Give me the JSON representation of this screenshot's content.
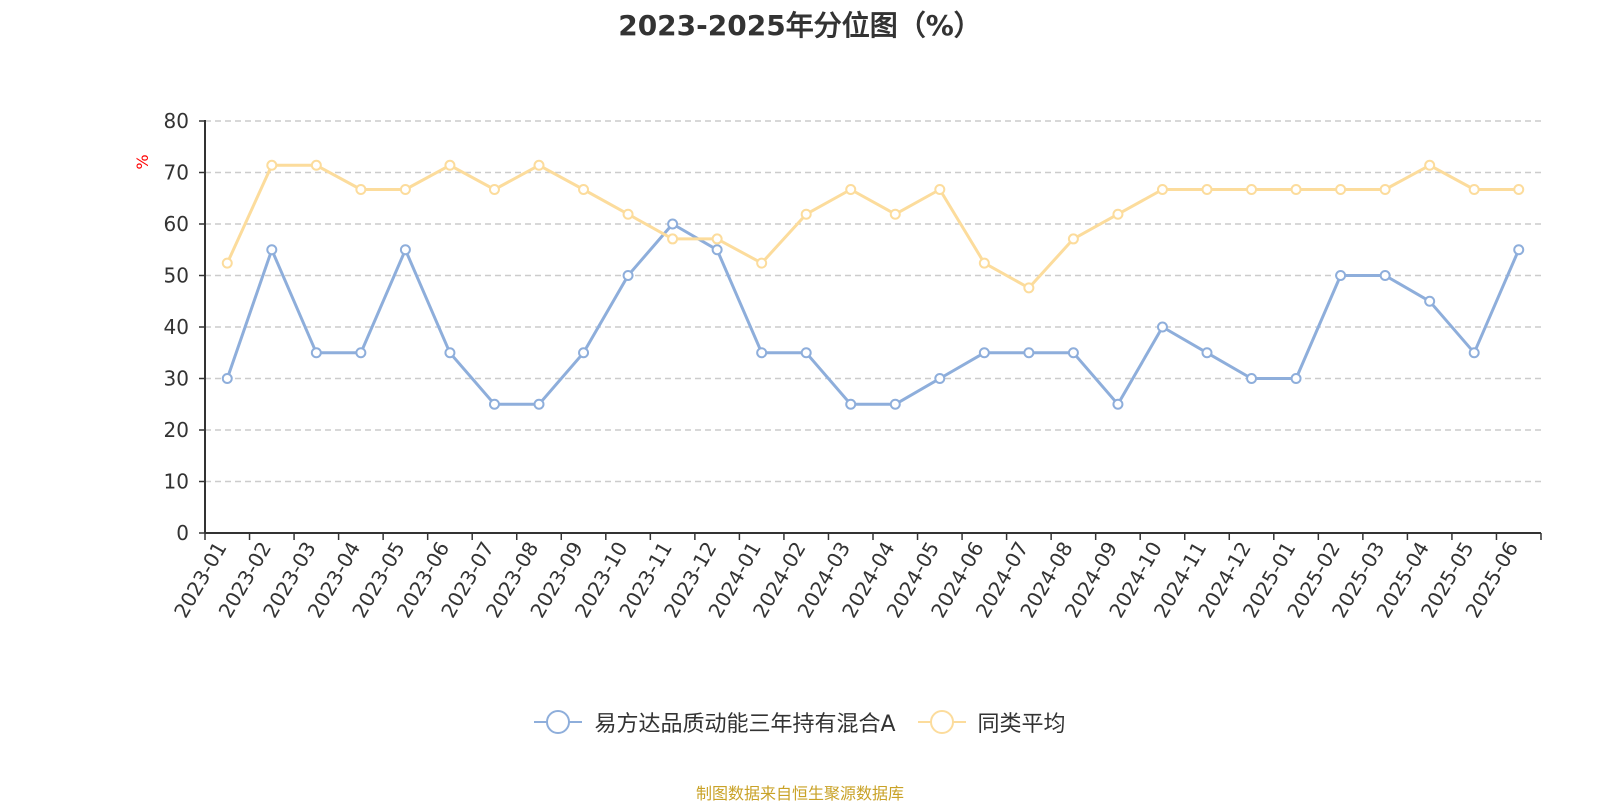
{
  "title": "2023-2025年分位图（%）",
  "source": "制图数据来自恒生聚源数据库",
  "chart_data": {
    "type": "line",
    "title": "2023-2025年分位图（%）",
    "ylabel": "%",
    "ylim": [
      0,
      80
    ],
    "yticks": [
      0,
      10,
      20,
      30,
      40,
      50,
      60,
      70,
      80
    ],
    "grid": true,
    "legend_position": "bottom",
    "categories": [
      "2023-01",
      "2023-02",
      "2023-03",
      "2023-04",
      "2023-05",
      "2023-06",
      "2023-07",
      "2023-08",
      "2023-09",
      "2023-10",
      "2023-11",
      "2023-12",
      "2024-01",
      "2024-02",
      "2024-03",
      "2024-04",
      "2024-05",
      "2024-06",
      "2024-07",
      "2024-08",
      "2024-09",
      "2024-10",
      "2024-11",
      "2024-12",
      "2025-01",
      "2025-02",
      "2025-03",
      "2025-04",
      "2025-05",
      "2025-06"
    ],
    "series": [
      {
        "name": "易方达品质动能三年持有混合A",
        "color": "#8eaedb",
        "values": [
          30,
          55,
          35,
          35,
          55,
          35,
          25,
          25,
          35,
          50,
          60,
          55,
          35,
          35,
          25,
          25,
          30,
          35,
          35,
          35,
          25,
          40,
          35,
          30,
          30,
          50,
          50,
          45,
          35,
          55
        ]
      },
      {
        "name": "同类平均",
        "color": "#fcdc9c",
        "values": [
          52.4,
          71.4,
          71.4,
          66.7,
          66.7,
          71.4,
          66.7,
          71.4,
          66.7,
          61.9,
          57.1,
          57.1,
          52.4,
          61.9,
          66.7,
          61.9,
          66.7,
          52.4,
          47.6,
          57.1,
          61.9,
          66.7,
          66.7,
          66.7,
          66.7,
          66.7,
          66.7,
          71.4,
          66.7,
          66.7
        ]
      }
    ]
  }
}
